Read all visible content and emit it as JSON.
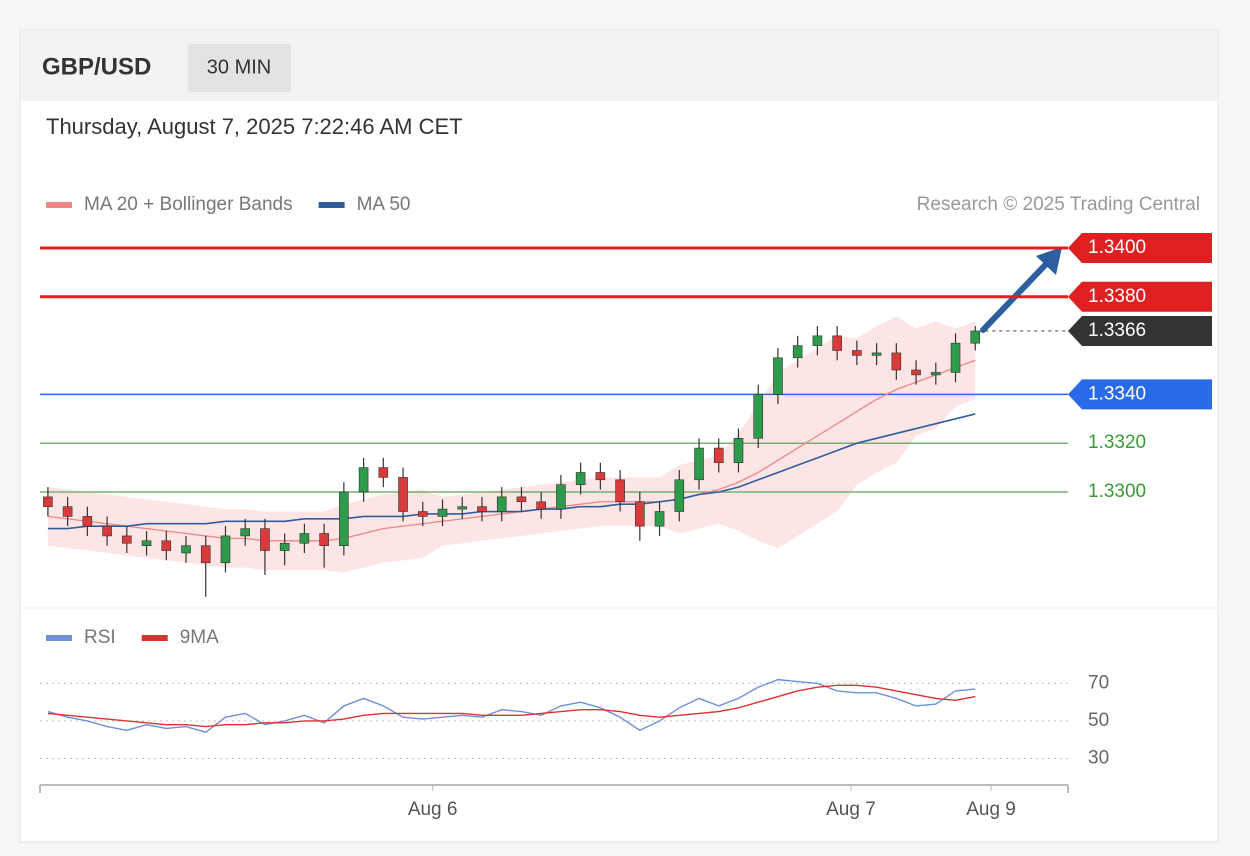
{
  "header": {
    "symbol": "GBP/USD",
    "timeframe": "30 MIN",
    "datetime": "Thursday, August 7, 2025 7:22:46 AM CET",
    "source": "Research © 2025 Trading Central"
  },
  "chart_data": [
    {
      "type": "candlestick",
      "x": [
        0,
        1,
        2,
        3,
        4,
        5,
        6,
        7,
        8,
        9,
        10,
        11,
        12,
        13,
        14,
        15,
        16,
        17,
        18,
        19,
        20,
        21,
        22,
        23,
        24,
        25,
        26,
        27,
        28,
        29,
        30,
        31,
        32,
        33,
        34,
        35,
        36,
        37,
        38,
        39,
        40,
        41,
        42,
        43,
        44,
        45,
        46,
        47
      ],
      "open": [
        1.3298,
        1.3294,
        1.329,
        1.3286,
        1.3282,
        1.3278,
        1.328,
        1.3275,
        1.3278,
        1.3271,
        1.3282,
        1.3285,
        1.3276,
        1.3279,
        1.3283,
        1.3278,
        1.33,
        1.331,
        1.3306,
        1.3292,
        1.329,
        1.3293,
        1.3294,
        1.3292,
        1.3298,
        1.3296,
        1.3293,
        1.3303,
        1.3308,
        1.3305,
        1.3296,
        1.3286,
        1.3292,
        1.3305,
        1.3318,
        1.3312,
        1.3322,
        1.334,
        1.3355,
        1.336,
        1.3364,
        1.3358,
        1.3356,
        1.3357,
        1.335,
        1.3348,
        1.3349,
        1.3361
      ],
      "high": [
        1.3302,
        1.3298,
        1.3294,
        1.329,
        1.3286,
        1.3284,
        1.3284,
        1.3282,
        1.3282,
        1.3286,
        1.3289,
        1.3289,
        1.3283,
        1.3287,
        1.3287,
        1.3304,
        1.3314,
        1.3314,
        1.331,
        1.3296,
        1.3297,
        1.3298,
        1.3298,
        1.3302,
        1.3302,
        1.33,
        1.3307,
        1.3312,
        1.3312,
        1.3309,
        1.33,
        1.3296,
        1.3309,
        1.3322,
        1.3322,
        1.3326,
        1.3344,
        1.3359,
        1.3364,
        1.3368,
        1.3368,
        1.3362,
        1.3361,
        1.3361,
        1.3354,
        1.3353,
        1.3365,
        1.3368
      ],
      "low": [
        1.329,
        1.3286,
        1.3282,
        1.3278,
        1.3275,
        1.3274,
        1.3272,
        1.3271,
        1.3257,
        1.3267,
        1.3278,
        1.3266,
        1.327,
        1.3275,
        1.3269,
        1.3274,
        1.3296,
        1.3302,
        1.3288,
        1.3286,
        1.3286,
        1.3289,
        1.3288,
        1.3288,
        1.3292,
        1.3289,
        1.3289,
        1.3299,
        1.3301,
        1.3292,
        1.328,
        1.3282,
        1.3288,
        1.3301,
        1.3308,
        1.3308,
        1.3318,
        1.3336,
        1.3351,
        1.3356,
        1.3354,
        1.3352,
        1.3352,
        1.3346,
        1.3344,
        1.3344,
        1.3345,
        1.3358
      ],
      "close": [
        1.3294,
        1.329,
        1.3286,
        1.3282,
        1.3279,
        1.328,
        1.3276,
        1.3278,
        1.3271,
        1.3282,
        1.3285,
        1.3276,
        1.3279,
        1.3283,
        1.3278,
        1.33,
        1.331,
        1.3306,
        1.3292,
        1.329,
        1.3293,
        1.3294,
        1.3292,
        1.3298,
        1.3296,
        1.3293,
        1.3303,
        1.3308,
        1.3305,
        1.3296,
        1.3286,
        1.3292,
        1.3305,
        1.3318,
        1.3312,
        1.3322,
        1.334,
        1.3355,
        1.336,
        1.3364,
        1.3358,
        1.3356,
        1.3357,
        1.335,
        1.3348,
        1.3349,
        1.3361,
        1.3366
      ],
      "up_color": "#2e9a4c",
      "down_color": "#d93a3a",
      "series": [
        {
          "name": "MA 20 + Bollinger Bands",
          "color": "#ef8585",
          "band_color": "#fde1e1",
          "values": [
            1.329,
            1.3289,
            1.3288,
            1.3287,
            1.3286,
            1.3285,
            1.3284,
            1.3283,
            1.3282,
            1.3281,
            1.3281,
            1.328,
            1.328,
            1.328,
            1.328,
            1.3281,
            1.3283,
            1.3285,
            1.3286,
            1.3287,
            1.3288,
            1.3289,
            1.329,
            1.3291,
            1.3292,
            1.3293,
            1.3294,
            1.3295,
            1.3296,
            1.3296,
            1.3296,
            1.3296,
            1.3297,
            1.3299,
            1.3301,
            1.3304,
            1.3308,
            1.3313,
            1.3318,
            1.3323,
            1.3328,
            1.3333,
            1.3338,
            1.3342,
            1.3345,
            1.3348,
            1.3351,
            1.3354
          ],
          "upper": [
            1.3302,
            1.3301,
            1.33,
            1.3299,
            1.3298,
            1.3297,
            1.3296,
            1.3295,
            1.3294,
            1.3293,
            1.3293,
            1.3292,
            1.3292,
            1.3292,
            1.3292,
            1.3295,
            1.3297,
            1.3299,
            1.33,
            1.3301,
            1.3298,
            1.3299,
            1.33,
            1.3301,
            1.3302,
            1.3303,
            1.3304,
            1.3305,
            1.3306,
            1.3306,
            1.3306,
            1.3306,
            1.3311,
            1.3313,
            1.3315,
            1.3324,
            1.3336,
            1.3349,
            1.3354,
            1.3359,
            1.3364,
            1.3363,
            1.3368,
            1.3372,
            1.3367,
            1.337,
            1.3367,
            1.337
          ],
          "lower": [
            1.3278,
            1.3277,
            1.3276,
            1.3275,
            1.3274,
            1.3273,
            1.3272,
            1.3271,
            1.327,
            1.3269,
            1.3269,
            1.3268,
            1.3268,
            1.3268,
            1.3268,
            1.3267,
            1.3269,
            1.3271,
            1.3272,
            1.3273,
            1.3278,
            1.3279,
            1.328,
            1.3281,
            1.3282,
            1.3283,
            1.3284,
            1.3285,
            1.3286,
            1.3286,
            1.3286,
            1.3286,
            1.3283,
            1.3285,
            1.3287,
            1.3284,
            1.328,
            1.3277,
            1.3282,
            1.3287,
            1.3292,
            1.3303,
            1.3308,
            1.3312,
            1.3323,
            1.3326,
            1.3335,
            1.3338
          ]
        },
        {
          "name": "MA 50",
          "color": "#2f5d9e",
          "values": [
            1.3285,
            1.3285,
            1.3286,
            1.3286,
            1.3286,
            1.3287,
            1.3287,
            1.3287,
            1.3287,
            1.3288,
            1.3288,
            1.3288,
            1.3288,
            1.3289,
            1.3289,
            1.3289,
            1.329,
            1.329,
            1.329,
            1.3291,
            1.3291,
            1.3291,
            1.3292,
            1.3292,
            1.3292,
            1.3293,
            1.3293,
            1.3294,
            1.3294,
            1.3295,
            1.3295,
            1.3296,
            1.3297,
            1.3299,
            1.33,
            1.3302,
            1.3305,
            1.3308,
            1.3311,
            1.3314,
            1.3317,
            1.332,
            1.3322,
            1.3324,
            1.3326,
            1.3328,
            1.333,
            1.3332
          ]
        }
      ],
      "levels": [
        {
          "value": 1.34,
          "label": "1.3400",
          "color": "#e02020",
          "tag": true,
          "dashed": false
        },
        {
          "value": 1.338,
          "label": "1.3380",
          "color": "#e02020",
          "tag": true,
          "dashed": false
        },
        {
          "value": 1.3366,
          "label": "1.3366",
          "color": "#333333",
          "tag": true,
          "dashed": true
        },
        {
          "value": 1.334,
          "label": "1.3340",
          "color": "#2a6ae8",
          "tag": true,
          "dashed": false
        },
        {
          "value": 1.332,
          "label": "1.3320",
          "color": "#3a9a3a",
          "tag": false,
          "dashed": false
        },
        {
          "value": 1.33,
          "label": "1.3300",
          "color": "#3a9a3a",
          "tag": false,
          "dashed": false
        }
      ],
      "xlim": [
        -0.4,
        51.7
      ],
      "ylim": [
        1.3255,
        1.341
      ]
    },
    {
      "type": "line",
      "x": [
        0,
        1,
        2,
        3,
        4,
        5,
        6,
        7,
        8,
        9,
        10,
        11,
        12,
        13,
        14,
        15,
        16,
        17,
        18,
        19,
        20,
        21,
        22,
        23,
        24,
        25,
        26,
        27,
        28,
        29,
        30,
        31,
        32,
        33,
        34,
        35,
        36,
        37,
        38,
        39,
        40,
        41,
        42,
        43,
        44,
        45,
        46,
        47
      ],
      "series": [
        {
          "name": "RSI",
          "color": "#6f8fdc",
          "values": [
            55,
            52,
            50,
            47,
            45,
            48,
            46,
            47,
            44,
            52,
            54,
            48,
            50,
            53,
            49,
            58,
            62,
            58,
            52,
            51,
            52,
            53,
            52,
            56,
            55,
            53,
            58,
            60,
            57,
            52,
            45,
            50,
            57,
            62,
            58,
            62,
            68,
            72,
            71,
            70,
            66,
            65,
            65,
            62,
            58,
            59,
            66,
            67
          ]
        },
        {
          "name": "9MA",
          "color": "#e03030",
          "values": [
            54,
            53,
            52,
            51,
            50,
            49,
            48,
            48,
            47,
            48,
            48,
            49,
            49,
            50,
            50,
            51,
            53,
            54,
            54,
            54,
            54,
            54,
            53,
            53,
            53,
            54,
            55,
            56,
            56,
            55,
            53,
            52,
            53,
            54,
            55,
            57,
            60,
            63,
            66,
            68,
            69,
            69,
            68,
            66,
            64,
            62,
            61,
            63
          ]
        }
      ],
      "xlim": [
        -0.4,
        51.7
      ],
      "xticks": [
        {
          "value": 19.5,
          "label": "Aug 6"
        },
        {
          "value": 40.7,
          "label": "Aug 7"
        },
        {
          "value": 47.8,
          "label": "Aug 9"
        }
      ],
      "ylim": [
        18,
        83
      ],
      "yticks": [
        30,
        50,
        70
      ]
    }
  ]
}
